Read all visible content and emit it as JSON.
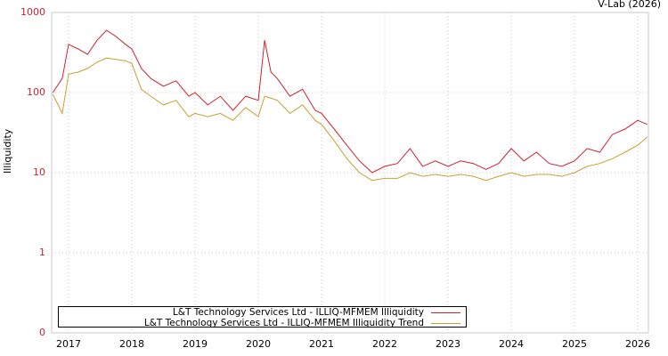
{
  "chart_data": {
    "type": "line",
    "title": "",
    "credit": "V-Lab (2026)",
    "xlabel": "",
    "ylabel": "Illiquidity",
    "yscale": "log",
    "ylim": [
      0.1,
      1000
    ],
    "y_ticks": [
      "1000",
      "100",
      "10",
      "1",
      "0"
    ],
    "x_ticks": [
      "2017",
      "2018",
      "2019",
      "2020",
      "2021",
      "2022",
      "2023",
      "2024",
      "2025",
      "2026"
    ],
    "grid": true,
    "legend_position": "bottom-left",
    "x": [
      2016.75,
      2016.9,
      2017.0,
      2017.15,
      2017.3,
      2017.45,
      2017.6,
      2017.75,
      2017.9,
      2018.0,
      2018.15,
      2018.3,
      2018.5,
      2018.7,
      2018.9,
      2019.0,
      2019.2,
      2019.4,
      2019.6,
      2019.8,
      2020.0,
      2020.1,
      2020.2,
      2020.3,
      2020.5,
      2020.7,
      2020.9,
      2021.0,
      2021.2,
      2021.4,
      2021.6,
      2021.8,
      2022.0,
      2022.2,
      2022.4,
      2022.6,
      2022.8,
      2023.0,
      2023.2,
      2023.4,
      2023.6,
      2023.8,
      2024.0,
      2024.2,
      2024.4,
      2024.6,
      2024.8,
      2025.0,
      2025.2,
      2025.4,
      2025.6,
      2025.8,
      2026.0,
      2026.15
    ],
    "series": [
      {
        "name": "L&T Technology Services Ltd - ILLIQ-MFMEM Illiquidity",
        "color": "#d0202e",
        "values": [
          100,
          150,
          400,
          350,
          300,
          450,
          600,
          500,
          400,
          350,
          200,
          150,
          120,
          140,
          90,
          100,
          70,
          90,
          60,
          90,
          80,
          450,
          180,
          150,
          90,
          110,
          60,
          55,
          35,
          22,
          14,
          10,
          12,
          13,
          20,
          12,
          14,
          12,
          14,
          13,
          11,
          13,
          20,
          14,
          18,
          13,
          12,
          14,
          20,
          18,
          30,
          35,
          45,
          40
        ]
      },
      {
        "name": "L&T Technology Services Ltd - ILLIQ-MFMEM Illiquidity Trend",
        "color": "#c8a030",
        "values": [
          95,
          55,
          170,
          180,
          200,
          240,
          270,
          260,
          250,
          230,
          110,
          90,
          70,
          80,
          50,
          55,
          50,
          55,
          45,
          65,
          50,
          90,
          85,
          80,
          55,
          70,
          45,
          40,
          25,
          15,
          10,
          8,
          8.5,
          8.5,
          10,
          9,
          9.5,
          9,
          9.5,
          9,
          8,
          9,
          10,
          9,
          9.5,
          9.5,
          9,
          10,
          12,
          13,
          15,
          18,
          22,
          28
        ]
      }
    ]
  },
  "legend": {
    "items": [
      {
        "label": "L&T Technology Services Ltd - ILLIQ-MFMEM Illiquidity",
        "color": "#d0202e"
      },
      {
        "label": "L&T Technology Services Ltd - ILLIQ-MFMEM Illiquidity Trend",
        "color": "#c8a030"
      }
    ]
  }
}
